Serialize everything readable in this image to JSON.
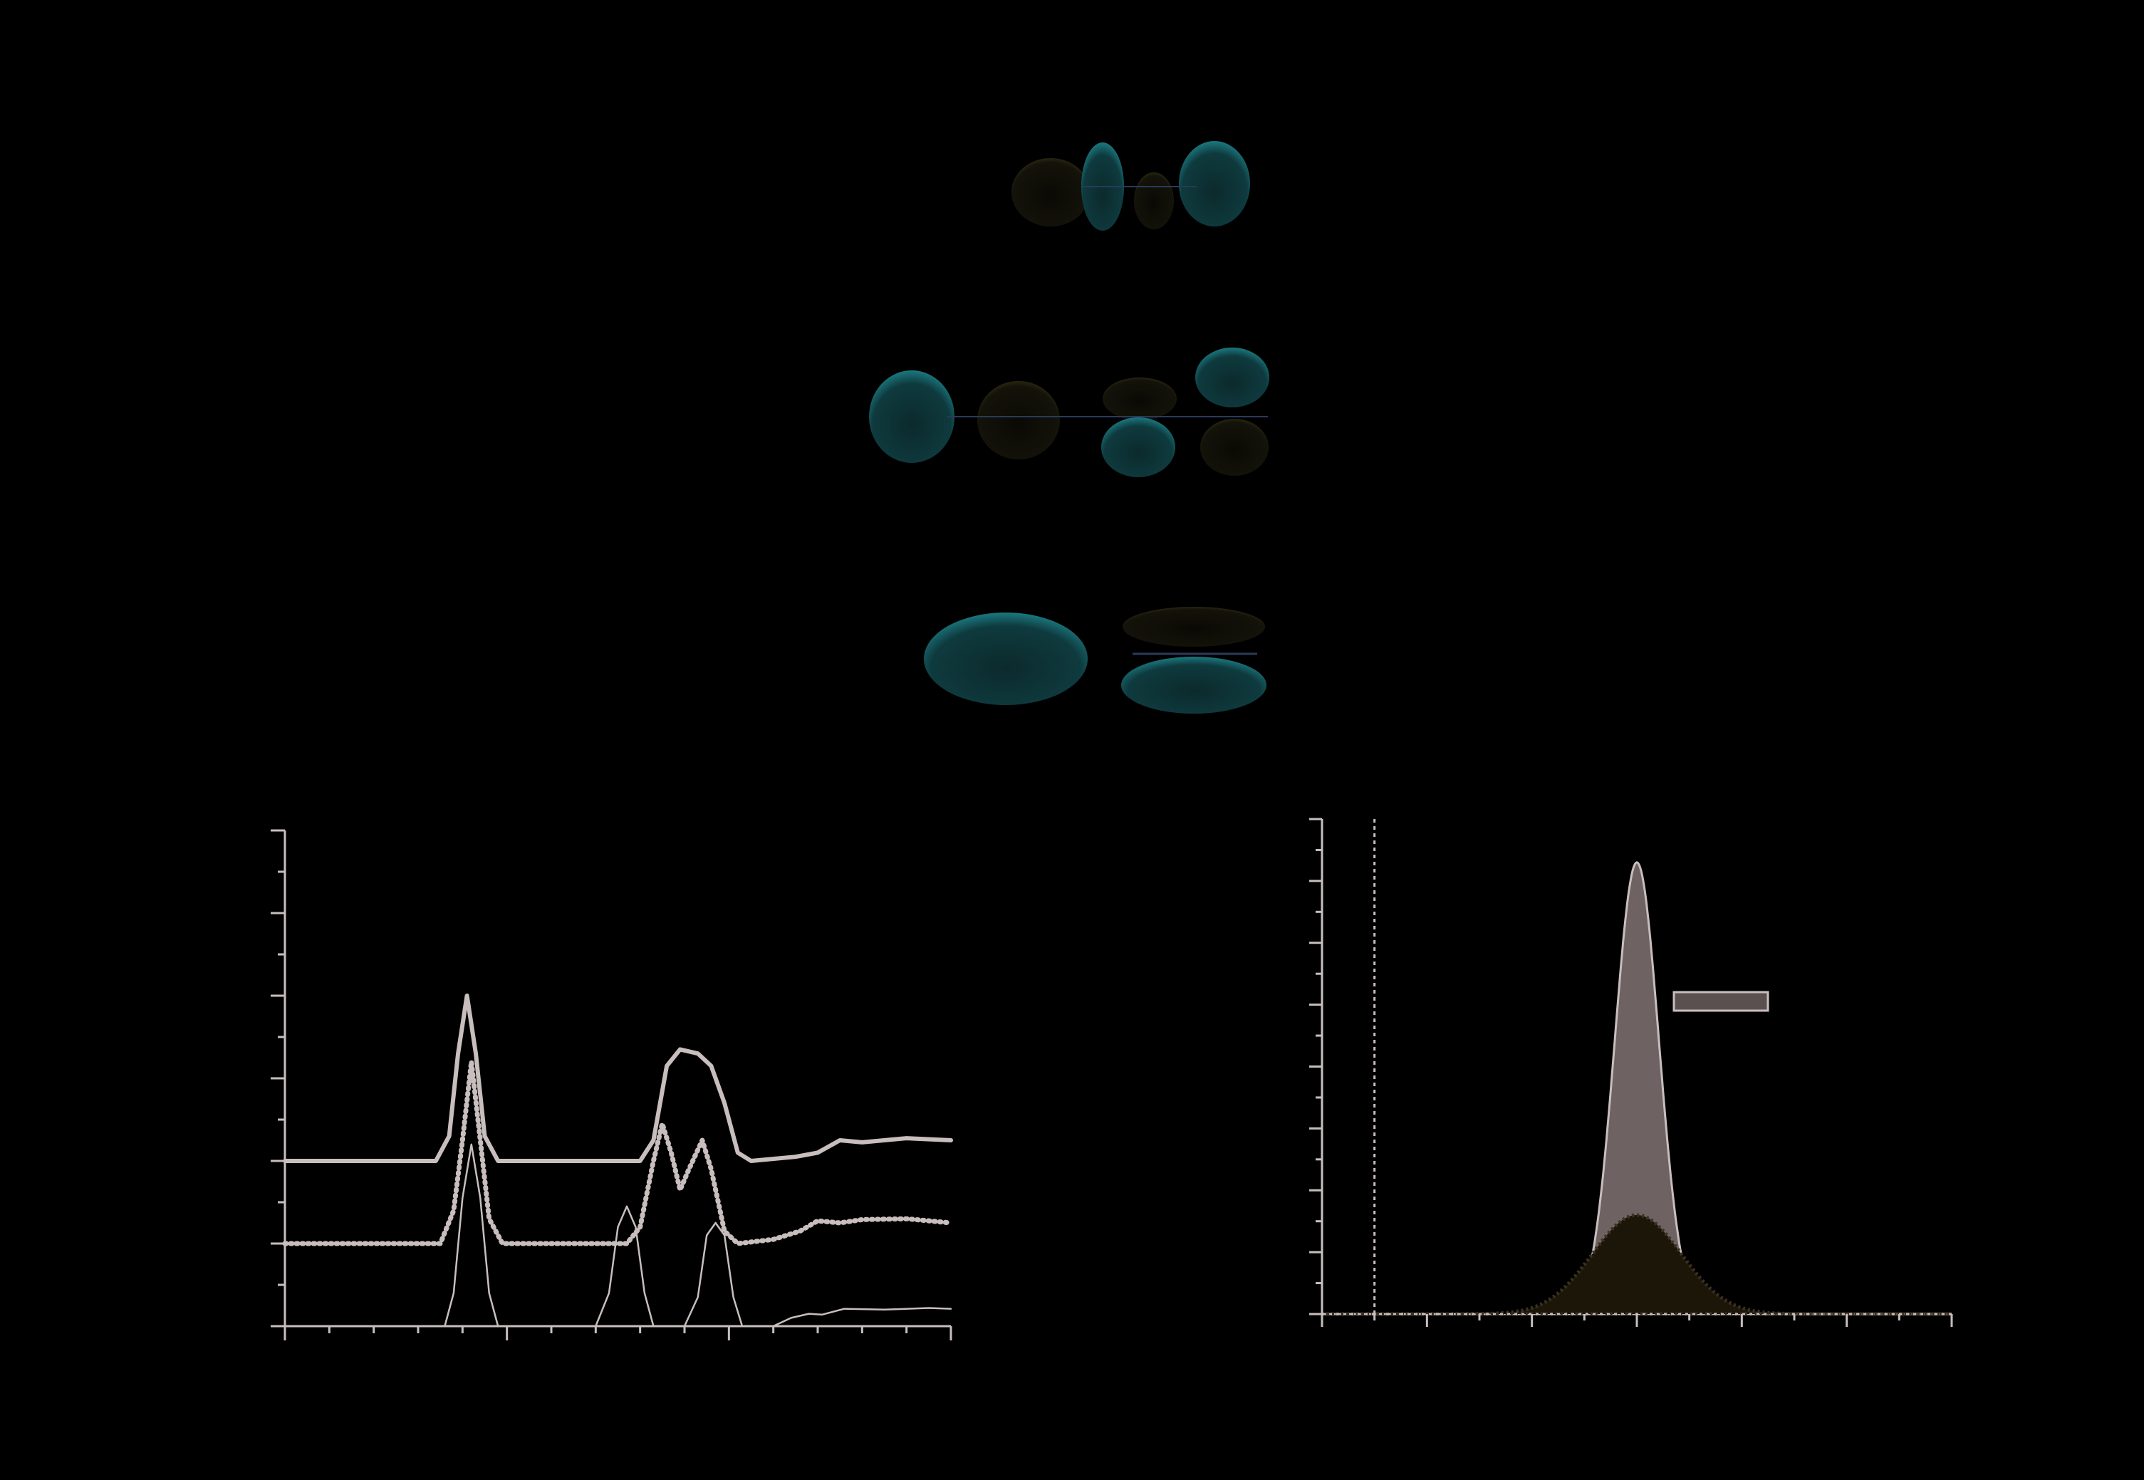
{
  "colors": {
    "background": "#000000",
    "axis": "#c8bebe",
    "lobe_cyan": "#1f8e96",
    "lobe_olive": "#4a4418",
    "gaussian_fill": "#6e6262",
    "inner_fill": "#1c1608",
    "legend_fill": "#5a5050"
  },
  "orbitals": [
    {
      "row": 1,
      "shape": "four-lobe",
      "colors": [
        "olive",
        "cyan",
        "olive",
        "cyan"
      ]
    },
    {
      "row": 2,
      "shape": "six-lobe",
      "colors": [
        "cyan",
        "olive",
        "cyan",
        "olive",
        "cyan",
        "olive"
      ]
    },
    {
      "row": 3,
      "shape": "pill-pair",
      "colors": [
        "cyan",
        "cyan"
      ]
    }
  ],
  "chart_data": [
    {
      "type": "line",
      "title": "",
      "xlabel": "",
      "ylabel": "",
      "xlim": [
        0,
        15
      ],
      "ylim": [
        0,
        12
      ],
      "x_ticks_major": [
        0,
        5,
        10,
        15
      ],
      "y_ticks_major": [
        0,
        2,
        4,
        6,
        8,
        10,
        12
      ],
      "series": [
        {
          "style": "thick-solid",
          "offset": 4,
          "points": [
            [
              0,
              0
            ],
            [
              3.4,
              0
            ],
            [
              3.7,
              0.6
            ],
            [
              3.9,
              2.6
            ],
            [
              4.1,
              4
            ],
            [
              4.3,
              2.6
            ],
            [
              4.5,
              0.6
            ],
            [
              4.8,
              0
            ],
            [
              8,
              0
            ],
            [
              8.3,
              0.5
            ],
            [
              8.6,
              2.3
            ],
            [
              8.9,
              2.7
            ],
            [
              9.3,
              2.6
            ],
            [
              9.6,
              2.3
            ],
            [
              9.9,
              1.4
            ],
            [
              10.2,
              0.2
            ],
            [
              10.5,
              0
            ],
            [
              11.5,
              0.1
            ],
            [
              12,
              0.2
            ],
            [
              12.5,
              0.5
            ],
            [
              13,
              0.45
            ],
            [
              14,
              0.55
            ],
            [
              15,
              0.5
            ]
          ]
        },
        {
          "style": "dotted-thick",
          "offset": 2,
          "points": [
            [
              0,
              0
            ],
            [
              3.5,
              0
            ],
            [
              3.8,
              0.8
            ],
            [
              4,
              2.5
            ],
            [
              4.2,
              4.4
            ],
            [
              4.4,
              2.5
            ],
            [
              4.6,
              0.6
            ],
            [
              4.9,
              0
            ],
            [
              7.7,
              0
            ],
            [
              8,
              0.4
            ],
            [
              8.3,
              2
            ],
            [
              8.5,
              2.9
            ],
            [
              8.7,
              2.2
            ],
            [
              8.9,
              1.3
            ],
            [
              9.1,
              1.8
            ],
            [
              9.4,
              2.5
            ],
            [
              9.6,
              1.8
            ],
            [
              9.9,
              0.3
            ],
            [
              10.2,
              0
            ],
            [
              11,
              0.1
            ],
            [
              11.6,
              0.3
            ],
            [
              12,
              0.55
            ],
            [
              12.5,
              0.5
            ],
            [
              13,
              0.58
            ],
            [
              14,
              0.6
            ],
            [
              15,
              0.5
            ]
          ]
        },
        {
          "style": "thin-solid",
          "offset": 0,
          "points": [
            [
              0,
              0
            ],
            [
              3.6,
              0
            ],
            [
              3.8,
              0.8
            ],
            [
              4,
              3.1
            ],
            [
              4.2,
              4.4
            ],
            [
              4.4,
              3.1
            ],
            [
              4.6,
              0.8
            ],
            [
              4.8,
              0
            ],
            [
              7.0,
              0
            ],
            [
              7.3,
              0.8
            ],
            [
              7.5,
              2.4
            ],
            [
              7.7,
              2.9
            ],
            [
              7.9,
              2.4
            ],
            [
              8.1,
              0.8
            ],
            [
              8.3,
              0
            ],
            [
              9.0,
              0
            ],
            [
              9.3,
              0.7
            ],
            [
              9.5,
              2.2
            ],
            [
              9.7,
              2.5
            ],
            [
              9.9,
              2.2
            ],
            [
              10.1,
              0.7
            ],
            [
              10.3,
              0
            ],
            [
              11,
              0
            ],
            [
              11.4,
              0.2
            ],
            [
              11.8,
              0.3
            ],
            [
              12.1,
              0.28
            ],
            [
              12.6,
              0.42
            ],
            [
              13.5,
              0.4
            ],
            [
              14.5,
              0.44
            ],
            [
              15,
              0.42
            ]
          ]
        }
      ]
    },
    {
      "type": "area",
      "title": "",
      "xlabel": "",
      "ylabel": "",
      "xlim": [
        -1,
        11
      ],
      "ylim": [
        0,
        8
      ],
      "x_ticks_major": [
        -1,
        1,
        3,
        5,
        7,
        9,
        11
      ],
      "y_ticks_major": [
        0,
        1,
        2,
        3,
        4,
        5,
        6,
        7,
        8
      ],
      "vertical_marker_x": 0,
      "series": [
        {
          "name": "",
          "kind": "gaussian",
          "center": 5,
          "sigma": 0.42,
          "amplitude": 7.3,
          "fill": "gaussian_fill"
        },
        {
          "name": "",
          "kind": "gaussian",
          "center": 5,
          "sigma": 0.85,
          "amplitude": 1.6,
          "fill": "inner_fill",
          "dotted_edge": true
        }
      ],
      "legend": {
        "position": "right-of-peak",
        "entries": [
          ""
        ]
      }
    }
  ]
}
